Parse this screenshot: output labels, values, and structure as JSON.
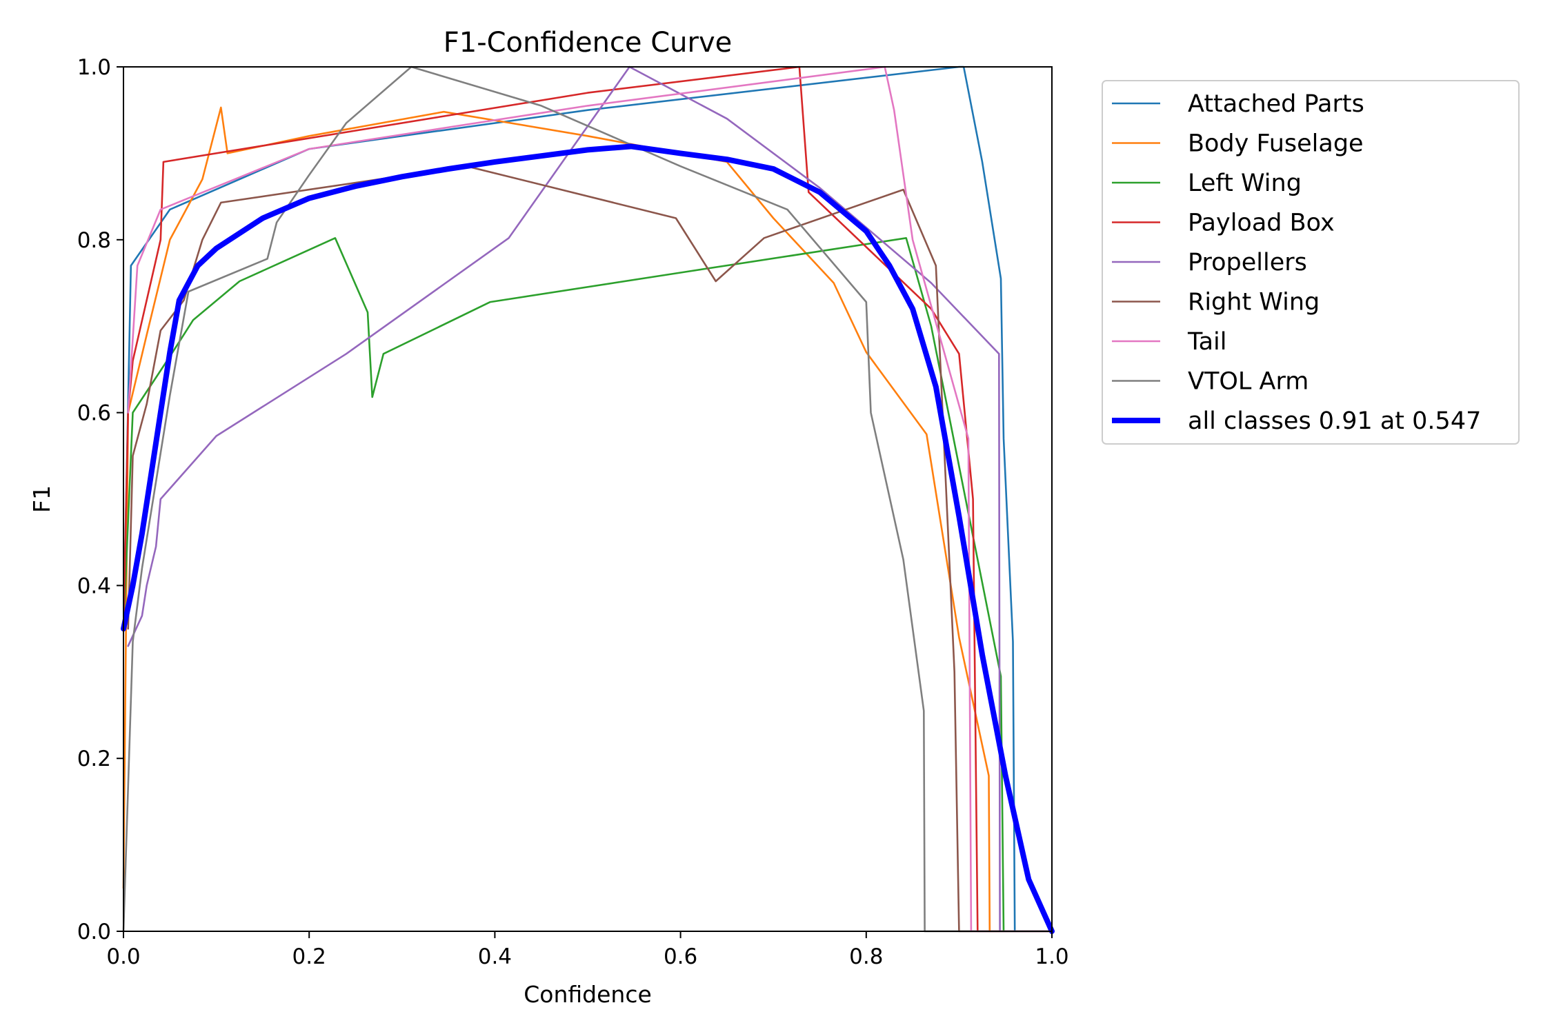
{
  "chart_data": {
    "type": "line",
    "title": "F1-Confidence Curve",
    "xlabel": "Confidence",
    "ylabel": "F1",
    "xlim": [
      0,
      1
    ],
    "ylim": [
      0,
      1
    ],
    "xticks": [
      "0.0",
      "0.2",
      "0.4",
      "0.6",
      "0.8",
      "1.0"
    ],
    "yticks": [
      "0.0",
      "0.2",
      "0.4",
      "0.6",
      "0.8",
      "1.0"
    ],
    "grid": false,
    "legend_position": "outside-top-right",
    "series": [
      {
        "name": "Attached Parts",
        "color": "#1f77b4",
        "points": [
          [
            0.0,
            0.35
          ],
          [
            0.008,
            0.77
          ],
          [
            0.05,
            0.835
          ],
          [
            0.2,
            0.905
          ],
          [
            0.5,
            0.95
          ],
          [
            0.9,
            1.0
          ],
          [
            0.905,
            1.0
          ],
          [
            0.925,
            0.89
          ],
          [
            0.945,
            0.755
          ],
          [
            0.948,
            0.57
          ],
          [
            0.958,
            0.335
          ],
          [
            0.96,
            0.0
          ],
          [
            1.0,
            0.0
          ]
        ]
      },
      {
        "name": "Body Fuselage",
        "color": "#ff7f0e",
        "points": [
          [
            0.0,
            0.05
          ],
          [
            0.005,
            0.6
          ],
          [
            0.025,
            0.69
          ],
          [
            0.05,
            0.8
          ],
          [
            0.085,
            0.87
          ],
          [
            0.105,
            0.953
          ],
          [
            0.112,
            0.9
          ],
          [
            0.2,
            0.92
          ],
          [
            0.345,
            0.948
          ],
          [
            0.5,
            0.92
          ],
          [
            0.65,
            0.89
          ],
          [
            0.7,
            0.825
          ],
          [
            0.765,
            0.75
          ],
          [
            0.8,
            0.67
          ],
          [
            0.865,
            0.575
          ],
          [
            0.9,
            0.34
          ],
          [
            0.932,
            0.18
          ],
          [
            0.933,
            0.0
          ],
          [
            1.0,
            0.0
          ]
        ]
      },
      {
        "name": "Left Wing",
        "color": "#2ca02c",
        "points": [
          [
            0.0,
            0.35
          ],
          [
            0.01,
            0.6
          ],
          [
            0.05,
            0.665
          ],
          [
            0.075,
            0.707
          ],
          [
            0.125,
            0.752
          ],
          [
            0.228,
            0.802
          ],
          [
            0.263,
            0.716
          ],
          [
            0.268,
            0.618
          ],
          [
            0.28,
            0.668
          ],
          [
            0.395,
            0.728
          ],
          [
            0.6,
            0.762
          ],
          [
            0.843,
            0.802
          ],
          [
            0.87,
            0.7
          ],
          [
            0.945,
            0.295
          ],
          [
            0.948,
            0.0
          ],
          [
            1.0,
            0.0
          ]
        ]
      },
      {
        "name": "Payload Box",
        "color": "#d62728",
        "points": [
          [
            0.0,
            0.35
          ],
          [
            0.005,
            0.6
          ],
          [
            0.01,
            0.66
          ],
          [
            0.04,
            0.8
          ],
          [
            0.043,
            0.89
          ],
          [
            0.5,
            0.97
          ],
          [
            0.728,
            1.0
          ],
          [
            0.738,
            0.855
          ],
          [
            0.87,
            0.72
          ],
          [
            0.9,
            0.668
          ],
          [
            0.915,
            0.5
          ],
          [
            0.92,
            0.0
          ],
          [
            1.0,
            0.0
          ]
        ]
      },
      {
        "name": "Propellers",
        "color": "#9467bd",
        "points": [
          [
            0.005,
            0.33
          ],
          [
            0.02,
            0.365
          ],
          [
            0.025,
            0.4
          ],
          [
            0.035,
            0.445
          ],
          [
            0.04,
            0.5
          ],
          [
            0.1,
            0.573
          ],
          [
            0.24,
            0.668
          ],
          [
            0.415,
            0.802
          ],
          [
            0.545,
            1.0
          ],
          [
            0.65,
            0.94
          ],
          [
            0.75,
            0.86
          ],
          [
            0.87,
            0.75
          ],
          [
            0.943,
            0.668
          ],
          [
            0.944,
            0.0
          ],
          [
            1.0,
            0.0
          ]
        ]
      },
      {
        "name": "Right Wing",
        "color": "#8c564b",
        "points": [
          [
            0.005,
            0.35
          ],
          [
            0.01,
            0.55
          ],
          [
            0.025,
            0.61
          ],
          [
            0.04,
            0.695
          ],
          [
            0.065,
            0.73
          ],
          [
            0.085,
            0.8
          ],
          [
            0.105,
            0.843
          ],
          [
            0.37,
            0.885
          ],
          [
            0.595,
            0.825
          ],
          [
            0.638,
            0.752
          ],
          [
            0.69,
            0.802
          ],
          [
            0.84,
            0.858
          ],
          [
            0.875,
            0.77
          ],
          [
            0.895,
            0.3
          ],
          [
            0.9,
            0.0
          ],
          [
            1.0,
            0.0
          ]
        ]
      },
      {
        "name": "Tail",
        "color": "#e377c2",
        "points": [
          [
            0.005,
            0.6
          ],
          [
            0.015,
            0.77
          ],
          [
            0.04,
            0.835
          ],
          [
            0.2,
            0.905
          ],
          [
            0.5,
            0.955
          ],
          [
            0.82,
            1.0
          ],
          [
            0.83,
            0.95
          ],
          [
            0.85,
            0.8
          ],
          [
            0.91,
            0.57
          ],
          [
            0.913,
            0.0
          ],
          [
            1.0,
            0.0
          ]
        ]
      },
      {
        "name": "VTOL Arm",
        "color": "#7f7f7f",
        "points": [
          [
            0.0,
            0.0
          ],
          [
            0.01,
            0.335
          ],
          [
            0.02,
            0.42
          ],
          [
            0.05,
            0.62
          ],
          [
            0.07,
            0.74
          ],
          [
            0.155,
            0.778
          ],
          [
            0.165,
            0.82
          ],
          [
            0.2,
            0.875
          ],
          [
            0.24,
            0.935
          ],
          [
            0.31,
            1.0
          ],
          [
            0.45,
            0.955
          ],
          [
            0.6,
            0.885
          ],
          [
            0.715,
            0.835
          ],
          [
            0.8,
            0.728
          ],
          [
            0.805,
            0.6
          ],
          [
            0.84,
            0.43
          ],
          [
            0.862,
            0.255
          ],
          [
            0.863,
            0.0
          ],
          [
            1.0,
            0.0
          ]
        ]
      },
      {
        "name": "all classes 0.91 at 0.547",
        "color": "#0000ff",
        "bold": true,
        "points": [
          [
            0.0,
            0.35
          ],
          [
            0.01,
            0.4
          ],
          [
            0.02,
            0.46
          ],
          [
            0.03,
            0.53
          ],
          [
            0.04,
            0.6
          ],
          [
            0.05,
            0.67
          ],
          [
            0.06,
            0.73
          ],
          [
            0.08,
            0.77
          ],
          [
            0.1,
            0.79
          ],
          [
            0.15,
            0.825
          ],
          [
            0.2,
            0.848
          ],
          [
            0.25,
            0.862
          ],
          [
            0.3,
            0.873
          ],
          [
            0.35,
            0.882
          ],
          [
            0.4,
            0.89
          ],
          [
            0.45,
            0.897
          ],
          [
            0.5,
            0.904
          ],
          [
            0.547,
            0.908
          ],
          [
            0.6,
            0.9
          ],
          [
            0.65,
            0.893
          ],
          [
            0.7,
            0.882
          ],
          [
            0.75,
            0.855
          ],
          [
            0.8,
            0.81
          ],
          [
            0.825,
            0.77
          ],
          [
            0.85,
            0.72
          ],
          [
            0.875,
            0.63
          ],
          [
            0.9,
            0.48
          ],
          [
            0.925,
            0.32
          ],
          [
            0.95,
            0.18
          ],
          [
            0.975,
            0.06
          ],
          [
            1.0,
            0.0
          ]
        ]
      }
    ]
  }
}
